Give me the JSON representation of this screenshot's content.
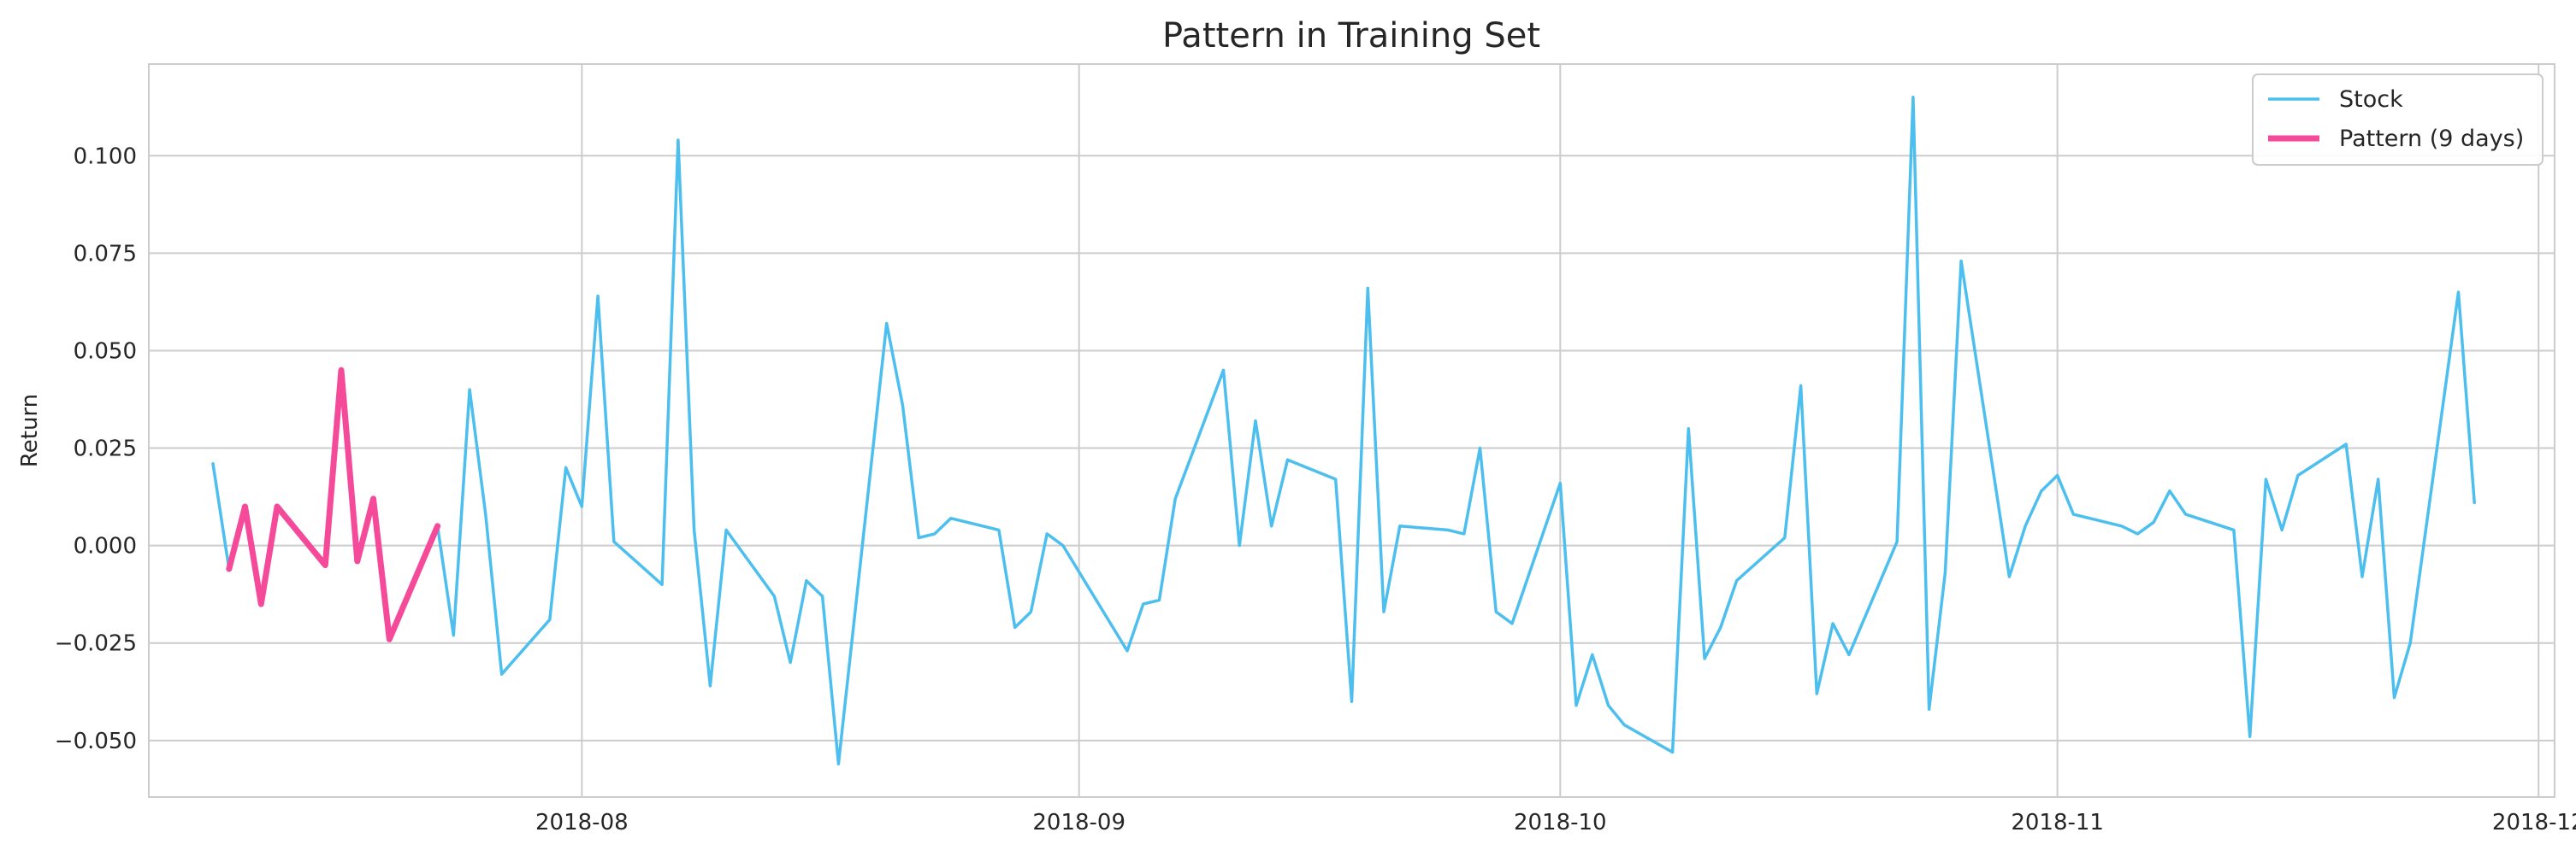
{
  "chart_data": {
    "type": "line",
    "title": "Pattern in Training Set",
    "xlabel": "",
    "ylabel": "Return",
    "xlim": [
      "2018-07-05",
      "2018-12-02"
    ],
    "ylim": [
      -0.0645,
      0.1235
    ],
    "grid": true,
    "legend_position": "top-right",
    "x_tick_labels": [
      "2018-08",
      "2018-09",
      "2018-10",
      "2018-11",
      "2018-12"
    ],
    "x_ticks": [
      "2018-08-01",
      "2018-09-01",
      "2018-10-01",
      "2018-11-01",
      "2018-12-01"
    ],
    "y_tick_labels": [
      "−0.050",
      "−0.025",
      "0.000",
      "0.025",
      "0.050",
      "0.075",
      "0.100"
    ],
    "y_ticks": [
      -0.05,
      -0.025,
      0.0,
      0.025,
      0.05,
      0.075,
      0.1
    ],
    "series": [
      {
        "name": "Stock",
        "color": "#4dbfef",
        "points": [
          [
            "2018-07-09",
            0.021
          ],
          [
            "2018-07-10",
            -0.006
          ],
          [
            "2018-07-11",
            0.01
          ],
          [
            "2018-07-12",
            -0.015
          ],
          [
            "2018-07-13",
            0.01
          ],
          [
            "2018-07-16",
            -0.005
          ],
          [
            "2018-07-17",
            0.045
          ],
          [
            "2018-07-18",
            -0.004
          ],
          [
            "2018-07-19",
            0.012
          ],
          [
            "2018-07-20",
            -0.024
          ],
          [
            "2018-07-23",
            0.005
          ],
          [
            "2018-07-24",
            -0.023
          ],
          [
            "2018-07-25",
            0.04
          ],
          [
            "2018-07-26",
            0.008
          ],
          [
            "2018-07-27",
            -0.033
          ],
          [
            "2018-07-30",
            -0.019
          ],
          [
            "2018-07-31",
            0.02
          ],
          [
            "2018-08-01",
            0.01
          ],
          [
            "2018-08-02",
            0.064
          ],
          [
            "2018-08-03",
            0.001
          ],
          [
            "2018-08-06",
            -0.01
          ],
          [
            "2018-08-07",
            0.104
          ],
          [
            "2018-08-08",
            0.004
          ],
          [
            "2018-08-09",
            -0.036
          ],
          [
            "2018-08-10",
            0.004
          ],
          [
            "2018-08-13",
            -0.013
          ],
          [
            "2018-08-14",
            -0.03
          ],
          [
            "2018-08-15",
            -0.009
          ],
          [
            "2018-08-16",
            -0.013
          ],
          [
            "2018-08-17",
            -0.056
          ],
          [
            "2018-08-20",
            0.057
          ],
          [
            "2018-08-21",
            0.036
          ],
          [
            "2018-08-22",
            0.002
          ],
          [
            "2018-08-23",
            0.003
          ],
          [
            "2018-08-24",
            0.007
          ],
          [
            "2018-08-27",
            0.004
          ],
          [
            "2018-08-28",
            -0.021
          ],
          [
            "2018-08-29",
            -0.017
          ],
          [
            "2018-08-30",
            0.003
          ],
          [
            "2018-08-31",
            0.0
          ],
          [
            "2018-09-04",
            -0.027
          ],
          [
            "2018-09-05",
            -0.015
          ],
          [
            "2018-09-06",
            -0.014
          ],
          [
            "2018-09-07",
            0.012
          ],
          [
            "2018-09-10",
            0.045
          ],
          [
            "2018-09-11",
            0.0
          ],
          [
            "2018-09-12",
            0.032
          ],
          [
            "2018-09-13",
            0.005
          ],
          [
            "2018-09-14",
            0.022
          ],
          [
            "2018-09-17",
            0.017
          ],
          [
            "2018-09-18",
            -0.04
          ],
          [
            "2018-09-19",
            0.066
          ],
          [
            "2018-09-20",
            -0.017
          ],
          [
            "2018-09-21",
            0.005
          ],
          [
            "2018-09-24",
            0.004
          ],
          [
            "2018-09-25",
            0.003
          ],
          [
            "2018-09-26",
            0.025
          ],
          [
            "2018-09-27",
            -0.017
          ],
          [
            "2018-09-28",
            -0.02
          ],
          [
            "2018-10-01",
            0.016
          ],
          [
            "2018-10-02",
            -0.041
          ],
          [
            "2018-10-03",
            -0.028
          ],
          [
            "2018-10-04",
            -0.041
          ],
          [
            "2018-10-05",
            -0.046
          ],
          [
            "2018-10-08",
            -0.053
          ],
          [
            "2018-10-09",
            0.03
          ],
          [
            "2018-10-10",
            -0.029
          ],
          [
            "2018-10-11",
            -0.021
          ],
          [
            "2018-10-12",
            -0.009
          ],
          [
            "2018-10-15",
            0.002
          ],
          [
            "2018-10-16",
            0.041
          ],
          [
            "2018-10-17",
            -0.038
          ],
          [
            "2018-10-18",
            -0.02
          ],
          [
            "2018-10-19",
            -0.028
          ],
          [
            "2018-10-22",
            0.001
          ],
          [
            "2018-10-23",
            0.115
          ],
          [
            "2018-10-24",
            -0.042
          ],
          [
            "2018-10-25",
            -0.007
          ],
          [
            "2018-10-26",
            0.073
          ],
          [
            "2018-10-29",
            -0.008
          ],
          [
            "2018-10-30",
            0.005
          ],
          [
            "2018-10-31",
            0.014
          ],
          [
            "2018-11-01",
            0.018
          ],
          [
            "2018-11-02",
            0.008
          ],
          [
            "2018-11-05",
            0.005
          ],
          [
            "2018-11-06",
            0.003
          ],
          [
            "2018-11-07",
            0.006
          ],
          [
            "2018-11-08",
            0.014
          ],
          [
            "2018-11-09",
            0.008
          ],
          [
            "2018-11-12",
            0.004
          ],
          [
            "2018-11-13",
            -0.049
          ],
          [
            "2018-11-14",
            0.017
          ],
          [
            "2018-11-15",
            0.004
          ],
          [
            "2018-11-16",
            0.018
          ],
          [
            "2018-11-19",
            0.026
          ],
          [
            "2018-11-20",
            -0.008
          ],
          [
            "2018-11-21",
            0.017
          ],
          [
            "2018-11-22",
            -0.039
          ],
          [
            "2018-11-23",
            -0.025
          ],
          [
            "2018-11-26",
            0.065
          ],
          [
            "2018-11-27",
            0.011
          ]
        ]
      },
      {
        "name": "Pattern (9 days)",
        "color": "#f5499a",
        "points": [
          [
            "2018-07-10",
            -0.006
          ],
          [
            "2018-07-11",
            0.01
          ],
          [
            "2018-07-12",
            -0.015
          ],
          [
            "2018-07-13",
            0.01
          ],
          [
            "2018-07-16",
            -0.005
          ],
          [
            "2018-07-17",
            0.045
          ],
          [
            "2018-07-18",
            -0.004
          ],
          [
            "2018-07-19",
            0.012
          ],
          [
            "2018-07-20",
            -0.024
          ],
          [
            "2018-07-23",
            0.005
          ]
        ]
      }
    ]
  }
}
